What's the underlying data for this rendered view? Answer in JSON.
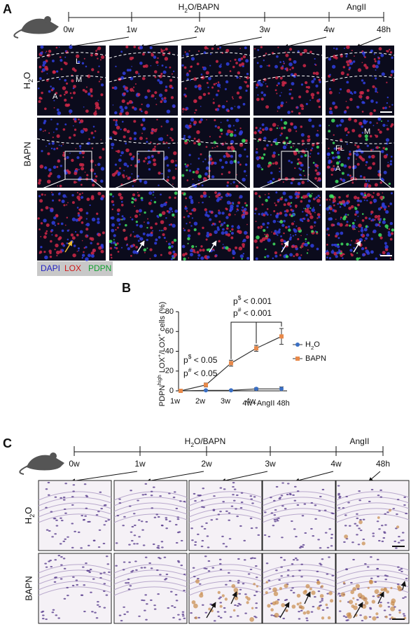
{
  "panel_a": {
    "label": "A",
    "timeline": {
      "period_1": [
        "H",
        "2",
        "O/BAPN"
      ],
      "period_2": "AngII",
      "ticks": [
        "0w",
        "1w",
        "2w",
        "3w",
        "4w",
        "48h"
      ]
    },
    "rows": [
      [
        "H",
        "2",
        "O"
      ],
      "BAPN"
    ],
    "image_labels": [
      "L",
      "M",
      "A",
      "M",
      "FL",
      "A"
    ],
    "legend": [
      "DAPI",
      "LOX",
      "PDPN"
    ]
  },
  "chart_data": {
    "type": "line",
    "panel_label": "B",
    "y_label": [
      "PDPN",
      "high",
      " LOX",
      "+",
      "/LOX",
      "+",
      " cells (%)"
    ],
    "categories": [
      "1w",
      "2w",
      "3w",
      "4w",
      "4w+AngII 48h"
    ],
    "series": [
      {
        "name": [
          "H",
          "2",
          "O"
        ],
        "color": "#3a6fc4",
        "marker": "circle",
        "values": [
          0,
          0.5,
          0.5,
          2,
          2
        ],
        "errors": [
          0.5,
          0.5,
          0.5,
          1,
          2
        ]
      },
      {
        "name": "BAPN",
        "color": "#e8894a",
        "marker": "square",
        "values": [
          0,
          6,
          28,
          43,
          55
        ],
        "errors": [
          0.5,
          2,
          3,
          3,
          8
        ]
      }
    ],
    "ylim": [
      0,
      80
    ],
    "yticks": [
      0,
      20,
      40,
      60,
      80
    ],
    "annotations": [
      [
        "p",
        "$",
        " < 0.05"
      ],
      [
        "p",
        "#",
        " < 0.05"
      ],
      [
        "p",
        "$",
        " < 0.001"
      ],
      [
        "p",
        "#",
        " < 0.001"
      ]
    ]
  },
  "panel_c": {
    "label": "C",
    "timeline": {
      "period_1": [
        "H",
        "2",
        "O/BAPN"
      ],
      "period_2": "AngII",
      "ticks": [
        "0w",
        "1w",
        "2w",
        "3w",
        "4w",
        "48h"
      ]
    },
    "rows": [
      [
        "H",
        "2",
        "O"
      ],
      "BAPN"
    ]
  }
}
